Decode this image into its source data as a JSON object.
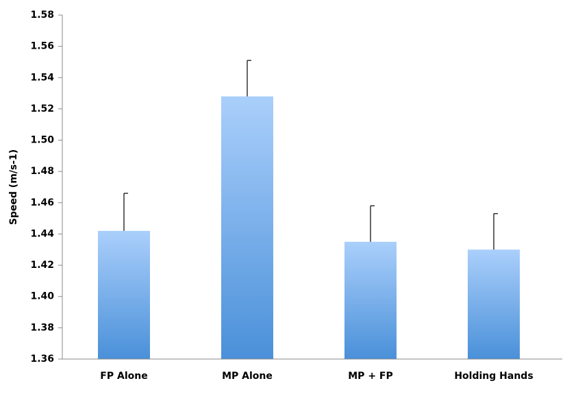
{
  "chart_data": {
    "type": "bar",
    "y_label": "Speed (m/s-1)",
    "categories": [
      "FP Alone",
      "MP Alone",
      "MP + FP",
      "Holding Hands"
    ],
    "values": [
      1.442,
      1.528,
      1.435,
      1.43
    ],
    "errors": [
      0.024,
      0.023,
      0.023,
      0.023
    ],
    "color": "#4a90d9",
    "ylim": [
      1.36,
      1.58
    ],
    "yticks": [
      1.36,
      1.38,
      {
        "value": 1.4,
        "label": "1.40"
      },
      1.42,
      1.44,
      1.46,
      1.48,
      {
        "value": 1.5,
        "label": "1.50"
      },
      1.52,
      1.54,
      1.56,
      1.58
    ],
    "grid": false
  }
}
